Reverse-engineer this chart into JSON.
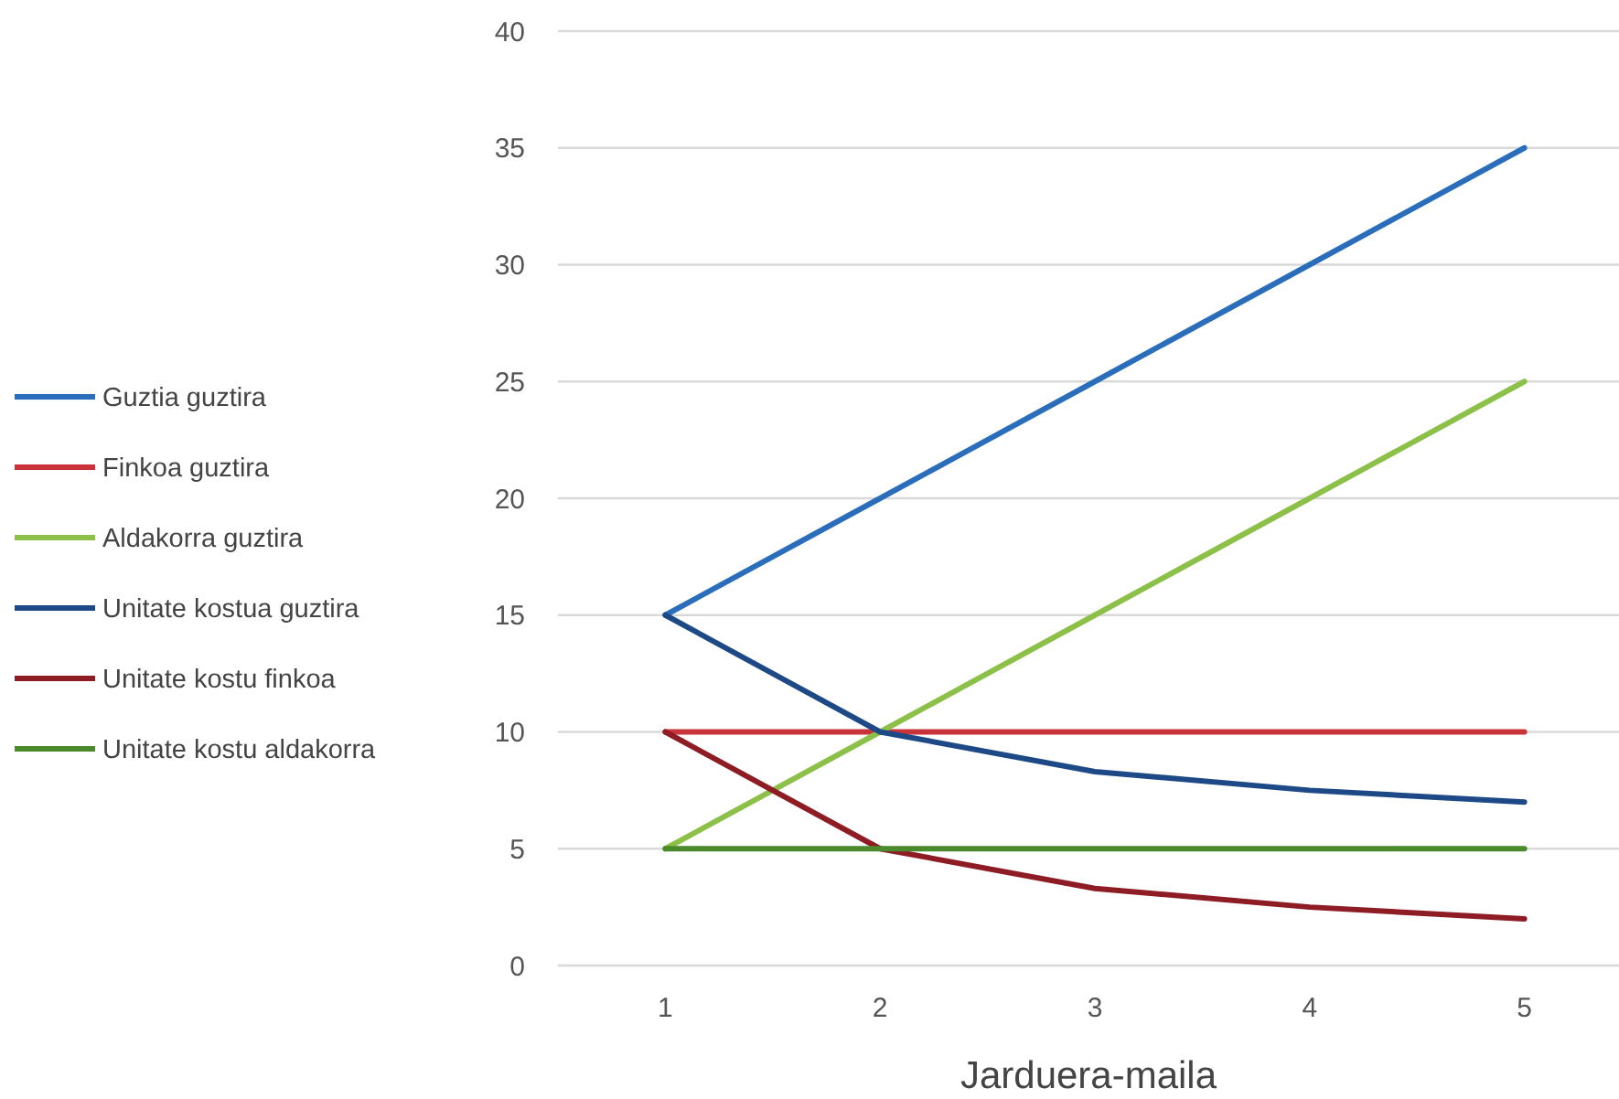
{
  "chart_data": {
    "type": "line",
    "xlabel": "Jarduera-maila",
    "categories": [
      "1",
      "2",
      "3",
      "4",
      "5"
    ],
    "series": [
      {
        "name": "Guztia guztira",
        "color": "#2a6ebb",
        "values": [
          15,
          20,
          25,
          30,
          35
        ]
      },
      {
        "name": "Finkoa guztira",
        "color": "#c8343a",
        "values": [
          10,
          10,
          10,
          10,
          10
        ]
      },
      {
        "name": "Aldakorra guztira",
        "color": "#8cc048",
        "values": [
          5,
          10,
          15,
          20,
          25
        ]
      },
      {
        "name": "Unitate kostua guztira",
        "color": "#1d4a87",
        "values": [
          15,
          10,
          8.3,
          7.5,
          7
        ]
      },
      {
        "name": "Unitate kostu finkoa",
        "color": "#8e1c24",
        "values": [
          10,
          5,
          3.3,
          2.5,
          2
        ]
      },
      {
        "name": "Unitate kostu aldakorra",
        "color": "#4a8a2c",
        "values": [
          5,
          5,
          5,
          5,
          5
        ]
      }
    ],
    "ylim": [
      0,
      40
    ],
    "yticks": [
      0,
      5,
      10,
      15,
      20,
      25,
      30,
      35,
      40
    ],
    "grid": "y",
    "legend": "left",
    "marker": "none",
    "line_style": "solid"
  }
}
